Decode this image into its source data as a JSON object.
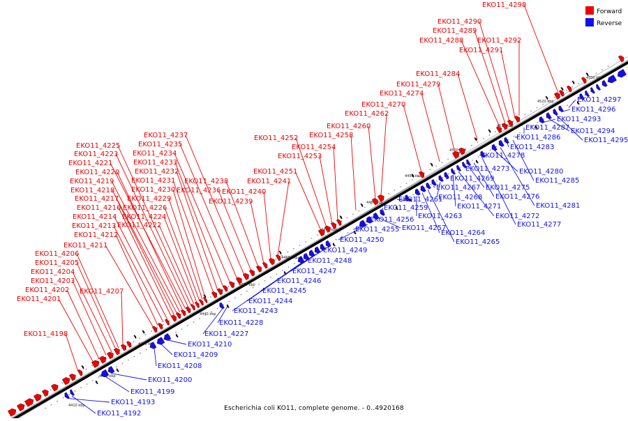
{
  "caption": "Escherichia coli KO11, complete genome. - 0..4920168",
  "legend": [
    {
      "label": "Forward",
      "color": "#ee0000"
    },
    {
      "label": "Reverse",
      "color": "#1010ee"
    }
  ],
  "kbp_ticks": [
    "4410 kbp",
    "4420 kbp",
    "4430 kbp",
    "4440 kbp",
    "4450 kbp",
    "4460 kbp",
    "4470 kbp",
    "4480 kbp",
    "4490 kbp",
    "4500 kbp",
    "4510 kbp",
    "4520 kbp",
    "4530 kbp"
  ],
  "forward_labels": [
    "EKO11_4198",
    "EKO11_4201",
    "EKO11_4202",
    "EKO11_4203",
    "EKO11_4204",
    "EKO11_4205",
    "EKO11_4206",
    "EKO11_4207",
    "EKO11_4211",
    "EKO11_4212",
    "EKO11_4213",
    "EKO11_4214",
    "EKO11_4216",
    "EKO11_4217",
    "EKO11_4218",
    "EKO11_4219",
    "EKO11_4220",
    "EKO11_4221",
    "EKO11_4223",
    "EKO11_4225",
    "EKO11_4222",
    "EKO11_4224",
    "EKO11_4226",
    "EKO11_4229",
    "EKO11_4230",
    "EKO11_4231",
    "EKO11_4232",
    "EKO11_4233",
    "EKO11_4234",
    "EKO11_4235",
    "EKO11_4237",
    "EKO11_4236",
    "EKO11_4238",
    "EKO11_4239",
    "EKO11_4240",
    "EKO11_4241",
    "EKO11_4251",
    "EKO11_4252",
    "EKO11_4253",
    "EKO11_4254",
    "EKO11_4258",
    "EKO11_4260",
    "EKO11_4262",
    "EKO11_4270",
    "EKO11_4274",
    "EKO11_4279",
    "EKO11_4284",
    "EKO11_4288",
    "EKO11_4289",
    "EKO11_4290",
    "EKO11_4291",
    "EKO11_4292",
    "EKO11_4298"
  ],
  "reverse_labels": [
    "EKO11_4192",
    "EKO11_4193",
    "EKO11_4199",
    "EKO11_4200",
    "EKO11_4208",
    "EKO11_4209",
    "EKO11_4210",
    "EKO11_4227",
    "EKO11_4228",
    "EKO11_4243",
    "EKO11_4244",
    "EKO11_4245",
    "EKO11_4246",
    "EKO11_4247",
    "EKO11_4248",
    "EKO11_4249",
    "EKO11_4250",
    "EKO11_4255",
    "EKO11_4256",
    "EKO11_4257",
    "EKO11_4259",
    "EKO11_4261",
    "EKO11_4263",
    "EKO11_4264",
    "EKO11_4265",
    "EKO11_4267",
    "EKO11_4268",
    "EKO11_4269",
    "EKO11_4271",
    "EKO11_4272",
    "EKO11_4273",
    "EKO11_4275",
    "EKO11_4276",
    "EKO11_4277",
    "EKO11_4278",
    "EKO11_4280",
    "EKO11_4281",
    "EKO11_4283",
    "EKO11_4285",
    "EKO11_4286",
    "EKO11_4287",
    "EKO11_4293",
    "EKO11_4294",
    "EKO11_4295",
    "EKO11_4296",
    "EKO11_4297"
  ]
}
